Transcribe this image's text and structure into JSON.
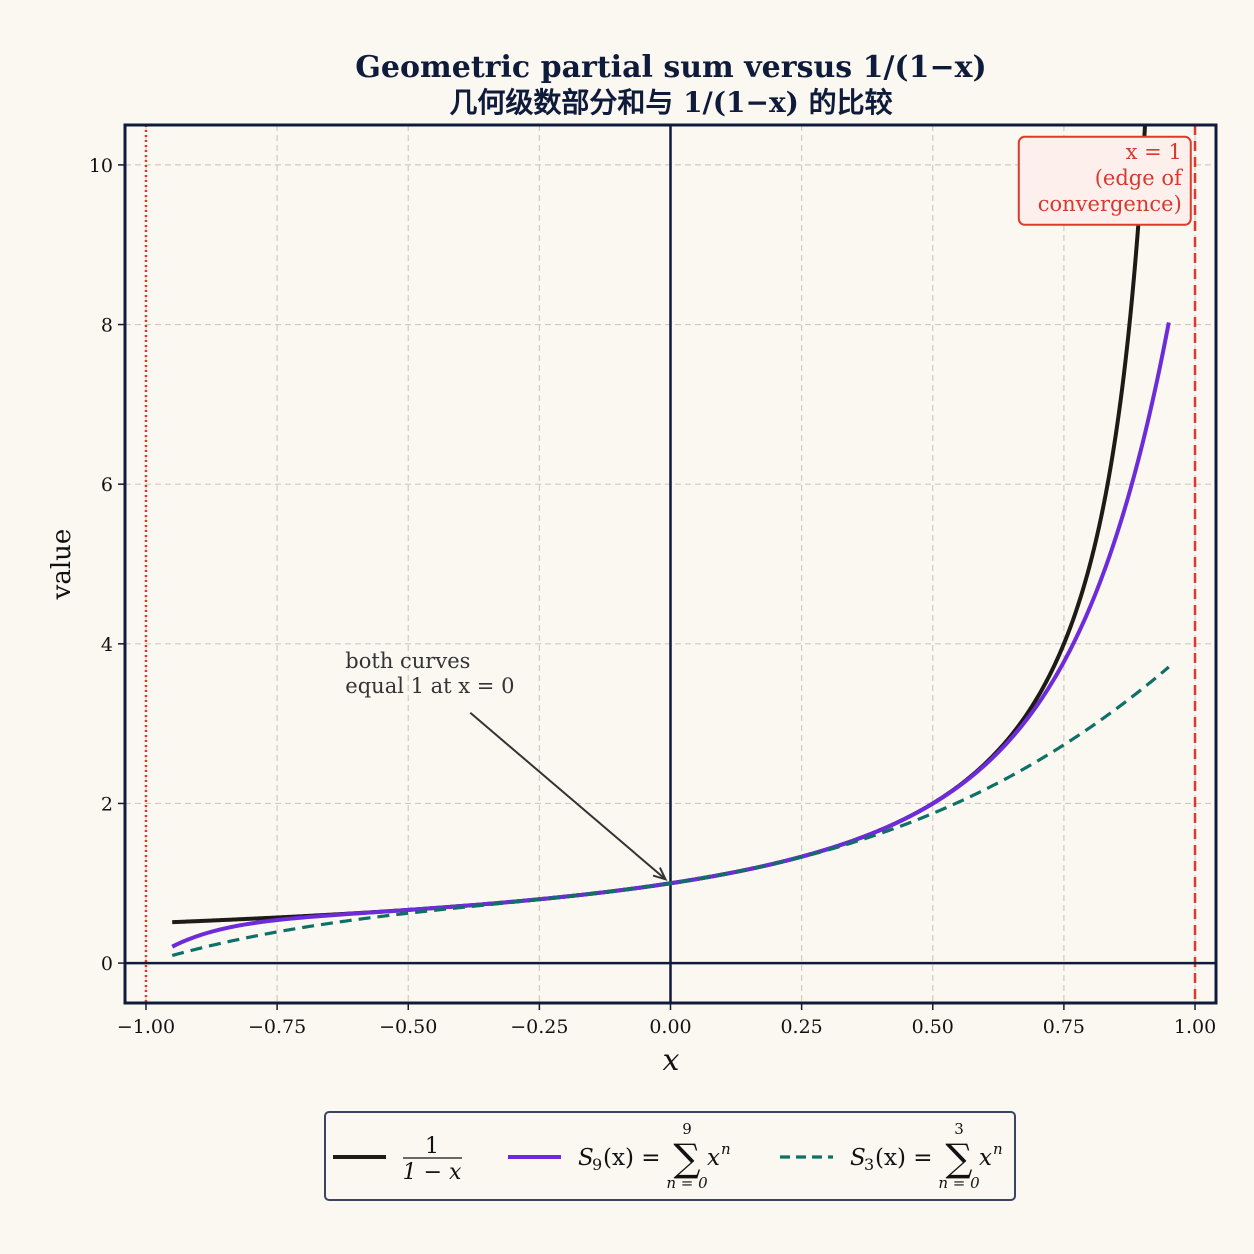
{
  "chart_data": {
    "type": "line",
    "title": "Geometric partial sum versus 1/(1−x)",
    "subtitle": "几何级数部分和与 1/(1−x) 的比较",
    "xlabel": "x",
    "ylabel": "value",
    "xlim": [
      -1.04,
      1.04
    ],
    "ylim": [
      -0.5,
      10.5
    ],
    "x_domain": [
      -0.95,
      0.95
    ],
    "grid": true,
    "x_ticks": [
      "−1.00",
      "−0.75",
      "−0.50",
      "−0.25",
      "0.00",
      "0.25",
      "0.50",
      "0.75",
      "1.00"
    ],
    "y_ticks": [
      "0",
      "2",
      "4",
      "6",
      "8",
      "10"
    ],
    "series": [
      {
        "name": "1/(1−x)",
        "function": "1/(1-x)",
        "color": "#1e1a16",
        "style": "solid"
      },
      {
        "name": "S₉(x) = Σ xⁿ, n = 0..9",
        "function": "sum x^n, n=0..9",
        "color": "#6d2bd9",
        "style": "solid"
      },
      {
        "name": "S₃(x) = Σ xⁿ, n = 0..3",
        "function": "sum x^n, n=0..3",
        "color": "#0f7068",
        "style": "dashed"
      }
    ],
    "reference_lines": [
      {
        "x": 1,
        "color": "#e0392c",
        "style": "dashed"
      },
      {
        "x": -1,
        "color": "#e0392c",
        "style": "dotted"
      },
      {
        "x": 0,
        "color": "#0f1b3a",
        "style": "solid"
      },
      {
        "y": 0,
        "color": "#0f1b3a",
        "style": "solid"
      }
    ],
    "annotations": {
      "both_curves": {
        "lines": [
          "both curves",
          "equal 1 at x = 0"
        ],
        "point": [
          0,
          1
        ],
        "text_at": [
          -0.62,
          3.7
        ]
      },
      "edge": {
        "lines": [
          "x = 1",
          "(edge of",
          "convergence)"
        ],
        "text_at": [
          0.99,
          9.3
        ]
      }
    },
    "legend": {
      "placement": "bottom",
      "entries": [
        {
          "num": "1",
          "den": "1 − x"
        },
        {
          "lhs_S": "S",
          "lhs_sub": "9",
          "lhs_rest": "(x) = ",
          "upper": "9",
          "lower": "n = 0",
          "term": "x",
          "power": "n"
        },
        {
          "lhs_S": "S",
          "lhs_sub": "3",
          "lhs_rest": "(x) = ",
          "upper": "3",
          "lower": "n = 0",
          "term": "x",
          "power": "n"
        }
      ]
    }
  }
}
